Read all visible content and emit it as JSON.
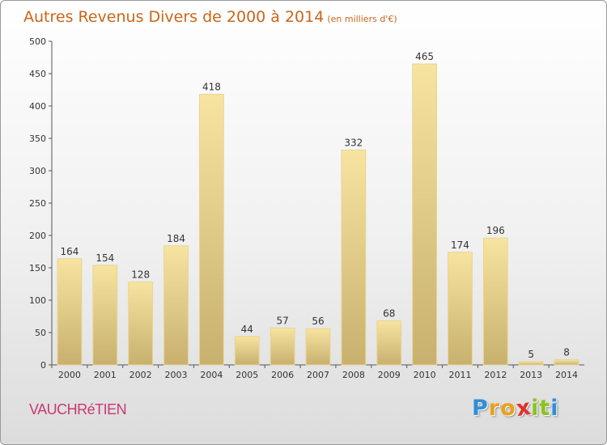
{
  "chart_data": {
    "type": "bar",
    "title": "Autres Revenus Divers de 2000 à 2014",
    "subtitle": "(en milliers d'€)",
    "xlabel": "",
    "ylabel": "",
    "categories": [
      "2000",
      "2001",
      "2002",
      "2003",
      "2004",
      "2005",
      "2006",
      "2007",
      "2008",
      "2009",
      "2010",
      "2011",
      "2012",
      "2013",
      "2014"
    ],
    "values": [
      164,
      154,
      128,
      184,
      418,
      44,
      57,
      56,
      332,
      68,
      465,
      174,
      196,
      5,
      8
    ],
    "ylim": [
      0,
      500
    ],
    "yticks": [
      0,
      50,
      100,
      150,
      200,
      250,
      300,
      350,
      400,
      450,
      500
    ],
    "grid": false,
    "data_labels": true
  },
  "place_name": "VAUCHRéTIEN",
  "logo": {
    "letters": [
      "P",
      "r",
      "o",
      "x",
      "i",
      "t",
      "i"
    ],
    "colors": [
      "#2f8fd6",
      "#e8a21b",
      "#e8a21b",
      "#e0312b",
      "#8dc21f",
      "#8dc21f",
      "#2f8fd6"
    ]
  },
  "colors": {
    "title": "#c9661a",
    "bar_light": "#f7e4a0",
    "bar_dark": "#c8b06e",
    "place": "#c93878"
  }
}
